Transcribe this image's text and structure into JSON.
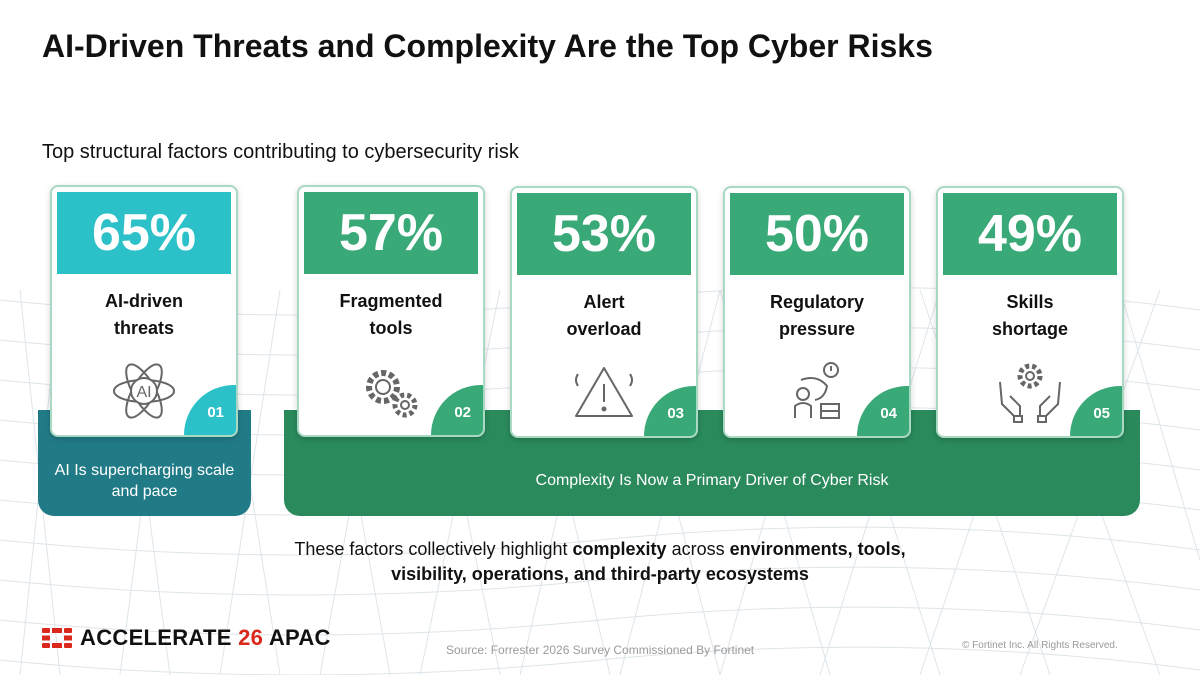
{
  "title": "AI-Driven Threats and Complexity Are the Top Cyber Risks",
  "subtitle": "Top structural factors contributing to cybersecurity risk",
  "cards": [
    {
      "percent": "65%",
      "label_line1": "AI-driven",
      "label_line2": "threats",
      "number": "01",
      "icon": "ai-chip-icon",
      "color": "#2cc0c8"
    },
    {
      "percent": "57%",
      "label_line1": "Fragmented",
      "label_line2": "tools",
      "number": "02",
      "icon": "gears-icon",
      "color": "#3aa978"
    },
    {
      "percent": "53%",
      "label_line1": "Alert",
      "label_line2": "overload",
      "number": "03",
      "icon": "warning-icon",
      "color": "#3aa978"
    },
    {
      "percent": "50%",
      "label_line1": "Regulatory",
      "label_line2": "pressure",
      "number": "04",
      "icon": "stressed-person-icon",
      "color": "#3aa978"
    },
    {
      "percent": "49%",
      "label_line1": "Skills",
      "label_line2": "shortage",
      "number": "05",
      "icon": "hands-gear-icon",
      "color": "#3aa978"
    }
  ],
  "band_ai_text": "AI Is supercharging scale and pace",
  "band_complexity_text": "Complexity Is Now a Primary Driver of Cyber Risk",
  "summary": {
    "part1": "These factors collectively highlight ",
    "bold1": "complexity",
    "part2": " across ",
    "bold2": "environments, tools,",
    "line2": "visibility, operations, and third-party ecosystems"
  },
  "logo": {
    "word": "ACCELERATE",
    "number": "26",
    "region": "APAC",
    "accent_color": "#da291c"
  },
  "source": "Source: Forrester 2026 Survey Commissioned By Fortinet",
  "copyright": "© Fortinet Inc. All Rights Reserved."
}
